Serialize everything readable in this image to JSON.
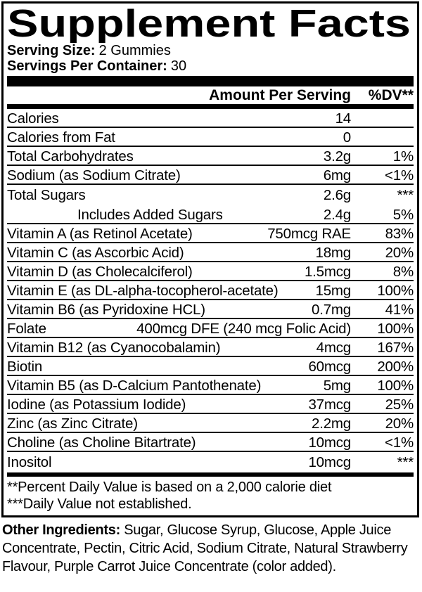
{
  "title": "Supplement Facts",
  "serving": {
    "size_label": "Serving Size:",
    "size_value": "2 Gummies",
    "container_label": "Servings Per Container:",
    "container_value": "30"
  },
  "table": {
    "header": {
      "amount": "Amount Per Serving",
      "dv": "%DV**"
    },
    "rows": [
      {
        "label": "Calories",
        "amount": "14",
        "dv": ""
      },
      {
        "label": "Calories from Fat",
        "amount": "0",
        "dv": ""
      },
      {
        "label": "Total Carbohydrates",
        "amount": "3.2g",
        "dv": "1%"
      },
      {
        "label": "Sodium (as Sodium Citrate)",
        "amount": "6mg",
        "dv": "<1%"
      },
      {
        "label": "Total Sugars",
        "amount": "2.6g",
        "dv": "***",
        "no_sep": true
      },
      {
        "label": "Includes Added Sugars",
        "amount": "2.4g",
        "dv": "5%",
        "indent": true
      },
      {
        "label": "Vitamin A (as Retinol Acetate)",
        "amount": "750mcg RAE",
        "dv": "83%"
      },
      {
        "label": "Vitamin C (as Ascorbic Acid)",
        "amount": "18mg",
        "dv": "20%"
      },
      {
        "label": "Vitamin D (as Cholecalciferol)",
        "amount": "1.5mcg",
        "dv": "8%"
      },
      {
        "label": "Vitamin E (as DL-alpha-tocopherol-acetate)",
        "amount": "15mg",
        "dv": "100%"
      },
      {
        "label": "Vitamin B6 (as Pyridoxine HCL)",
        "amount": "0.7mg",
        "dv": "41%"
      },
      {
        "label": "Folate",
        "amount": "400mcg DFE (240 mcg Folic Acid)",
        "dv": "100%"
      },
      {
        "label": "Vitamin B12 (as Cyanocobalamin)",
        "amount": "4mcg",
        "dv": "167%"
      },
      {
        "label": "Biotin",
        "amount": "60mcg",
        "dv": "200%"
      },
      {
        "label": "Vitamin B5 (as D-Calcium Pantothenate)",
        "amount": "5mg",
        "dv": "100%"
      },
      {
        "label": "Iodine (as Potassium Iodide)",
        "amount": "37mcg",
        "dv": "25%"
      },
      {
        "label": "Zinc (as Zinc Citrate)",
        "amount": "2.2mg",
        "dv": "20%"
      },
      {
        "label": "Choline (as Choline Bitartrate)",
        "amount": "10mcg",
        "dv": "<1%"
      },
      {
        "label": "Inositol",
        "amount": "10mcg",
        "dv": "***",
        "no_sep": true
      }
    ],
    "footnotes": [
      "**Percent Daily Value is based on a 2,000 calorie diet",
      "***Daily Value not established."
    ]
  },
  "other_ingredients": {
    "label": "Other Ingredients:",
    "text": " Sugar, Glucose Syrup, Glucose, Apple Juice Concentrate, Pectin, Citric Acid, Sodium Citrate, Natural Strawberry Flavour, Purple Carrot Juice Concentrate (color added)."
  },
  "colors": {
    "text": "#000000",
    "background": "#ffffff"
  }
}
